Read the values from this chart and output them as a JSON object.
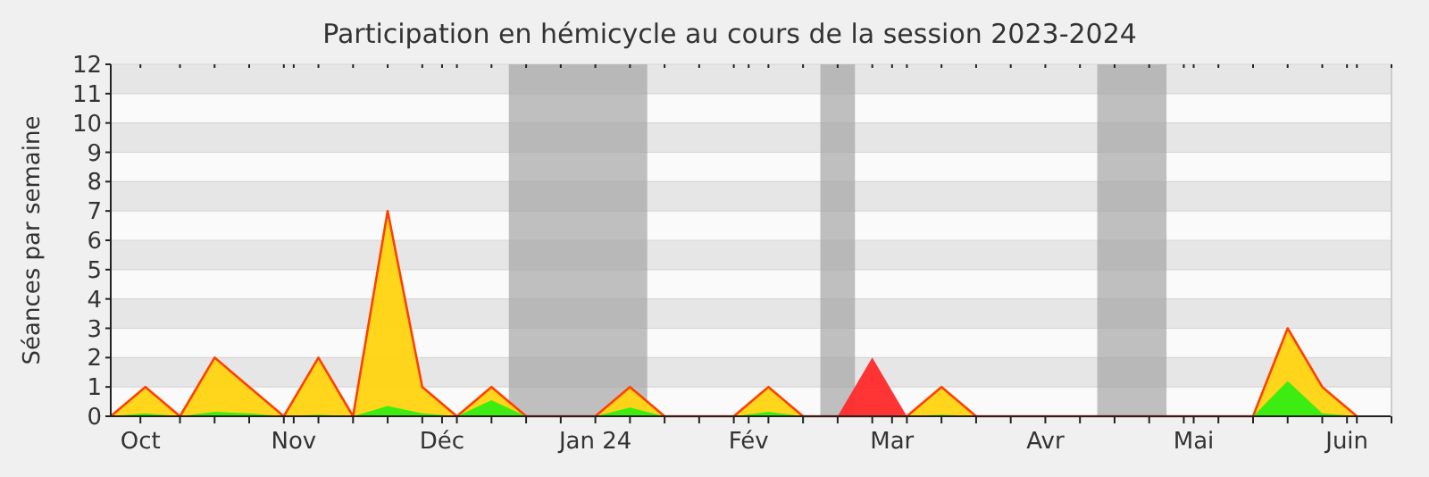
{
  "chart_data": {
    "type": "area",
    "title": "Participation en hémicycle au cours de la session 2023-2024",
    "ylabel": "Séances par semaine",
    "x": [
      "2023-09-25",
      "2023-10-02",
      "2023-10-09",
      "2023-10-16",
      "2023-10-23",
      "2023-10-30",
      "2023-11-06",
      "2023-11-13",
      "2023-11-20",
      "2023-11-27",
      "2023-12-04",
      "2023-12-11",
      "2023-12-18",
      "2023-12-25",
      "2024-01-01",
      "2024-01-08",
      "2024-01-15",
      "2024-01-22",
      "2024-01-29",
      "2024-02-05",
      "2024-02-12",
      "2024-02-19",
      "2024-02-26",
      "2024-03-04",
      "2024-03-11",
      "2024-03-18",
      "2024-03-25",
      "2024-04-01",
      "2024-04-08",
      "2024-04-15",
      "2024-04-22",
      "2024-04-29",
      "2024-05-06",
      "2024-05-13",
      "2024-05-20",
      "2024-05-27",
      "2024-06-03"
    ],
    "series": [
      {
        "color": "#ffd40f",
        "values": [
          0,
          1,
          0,
          2,
          1,
          0,
          2,
          0,
          7,
          1,
          0,
          1,
          0,
          0,
          0,
          1,
          0,
          0,
          0,
          1,
          0,
          0,
          0,
          0,
          1,
          0,
          0,
          0,
          0,
          0,
          0,
          0,
          0,
          0,
          3,
          1,
          0
        ]
      },
      {
        "color": "#33ee11",
        "values": [
          0,
          0.1,
          0,
          0.15,
          0.1,
          0,
          0.05,
          0,
          0.35,
          0.1,
          0,
          0.55,
          0,
          0,
          0,
          0.3,
          0,
          0,
          0,
          0.15,
          0,
          0,
          0,
          0,
          0.05,
          0,
          0,
          0,
          0,
          0,
          0,
          0,
          0,
          0,
          1.2,
          0.1,
          0
        ]
      },
      {
        "color": "#ff2a2a",
        "x": [
          "2024-02-19",
          "2024-02-26",
          "2024-03-04"
        ],
        "values": [
          0,
          2,
          0
        ]
      }
    ],
    "xlim": [
      "2023-09-25",
      "2024-06-10"
    ],
    "xticks": [
      {
        "value": "2023-10-01",
        "label": "Oct"
      },
      {
        "value": "2023-10-09",
        "label": null
      },
      {
        "value": "2023-10-16",
        "label": null
      },
      {
        "value": "2023-10-23",
        "label": null
      },
      {
        "value": "2023-10-30",
        "label": null
      },
      {
        "value": "2023-11-01",
        "label": "Nov"
      },
      {
        "value": "2023-11-06",
        "label": null
      },
      {
        "value": "2023-11-13",
        "label": null
      },
      {
        "value": "2023-11-20",
        "label": null
      },
      {
        "value": "2023-11-27",
        "label": null
      },
      {
        "value": "2023-12-01",
        "label": "Déc"
      },
      {
        "value": "2023-12-04",
        "label": null
      },
      {
        "value": "2023-12-11",
        "label": null
      },
      {
        "value": "2023-12-18",
        "label": null
      },
      {
        "value": "2023-12-25",
        "label": null
      },
      {
        "value": "2024-01-01",
        "label": "Jan 24"
      },
      {
        "value": "2024-01-08",
        "label": null
      },
      {
        "value": "2024-01-15",
        "label": null
      },
      {
        "value": "2024-01-22",
        "label": null
      },
      {
        "value": "2024-01-29",
        "label": null
      },
      {
        "value": "2024-02-01",
        "label": "Fév"
      },
      {
        "value": "2024-02-05",
        "label": null
      },
      {
        "value": "2024-02-12",
        "label": null
      },
      {
        "value": "2024-02-19",
        "label": null
      },
      {
        "value": "2024-02-26",
        "label": null
      },
      {
        "value": "2024-03-01",
        "label": "Mar"
      },
      {
        "value": "2024-03-04",
        "label": null
      },
      {
        "value": "2024-03-11",
        "label": null
      },
      {
        "value": "2024-03-18",
        "label": null
      },
      {
        "value": "2024-03-25",
        "label": null
      },
      {
        "value": "2024-04-01",
        "label": "Avr"
      },
      {
        "value": "2024-04-08",
        "label": null
      },
      {
        "value": "2024-04-15",
        "label": null
      },
      {
        "value": "2024-04-22",
        "label": null
      },
      {
        "value": "2024-04-29",
        "label": null
      },
      {
        "value": "2024-05-01",
        "label": "Mai"
      },
      {
        "value": "2024-05-06",
        "label": null
      },
      {
        "value": "2024-05-13",
        "label": null
      },
      {
        "value": "2024-05-20",
        "label": null
      },
      {
        "value": "2024-05-27",
        "label": null
      },
      {
        "value": "2024-06-01",
        "label": "Juin"
      },
      {
        "value": "2024-06-03",
        "label": null
      },
      {
        "value": "2024-06-10",
        "label": null
      }
    ],
    "ylim": [
      0,
      12
    ],
    "yticks": [
      0,
      1,
      2,
      3,
      4,
      5,
      6,
      7,
      8,
      9,
      10,
      11,
      12
    ],
    "bands": [
      {
        "axis": "x",
        "from": "2023-12-14T12:00",
        "to": "2024-01-11T12:00",
        "color": "#a0a0a0"
      },
      {
        "axis": "x",
        "from": "2024-02-15T12:00",
        "to": "2024-02-22T12:00",
        "color": "#a0a0a0"
      },
      {
        "axis": "x",
        "from": "2024-04-11T12:00",
        "to": "2024-04-25T12:00",
        "color": "#a0a0a0"
      }
    ],
    "grid": "y"
  }
}
